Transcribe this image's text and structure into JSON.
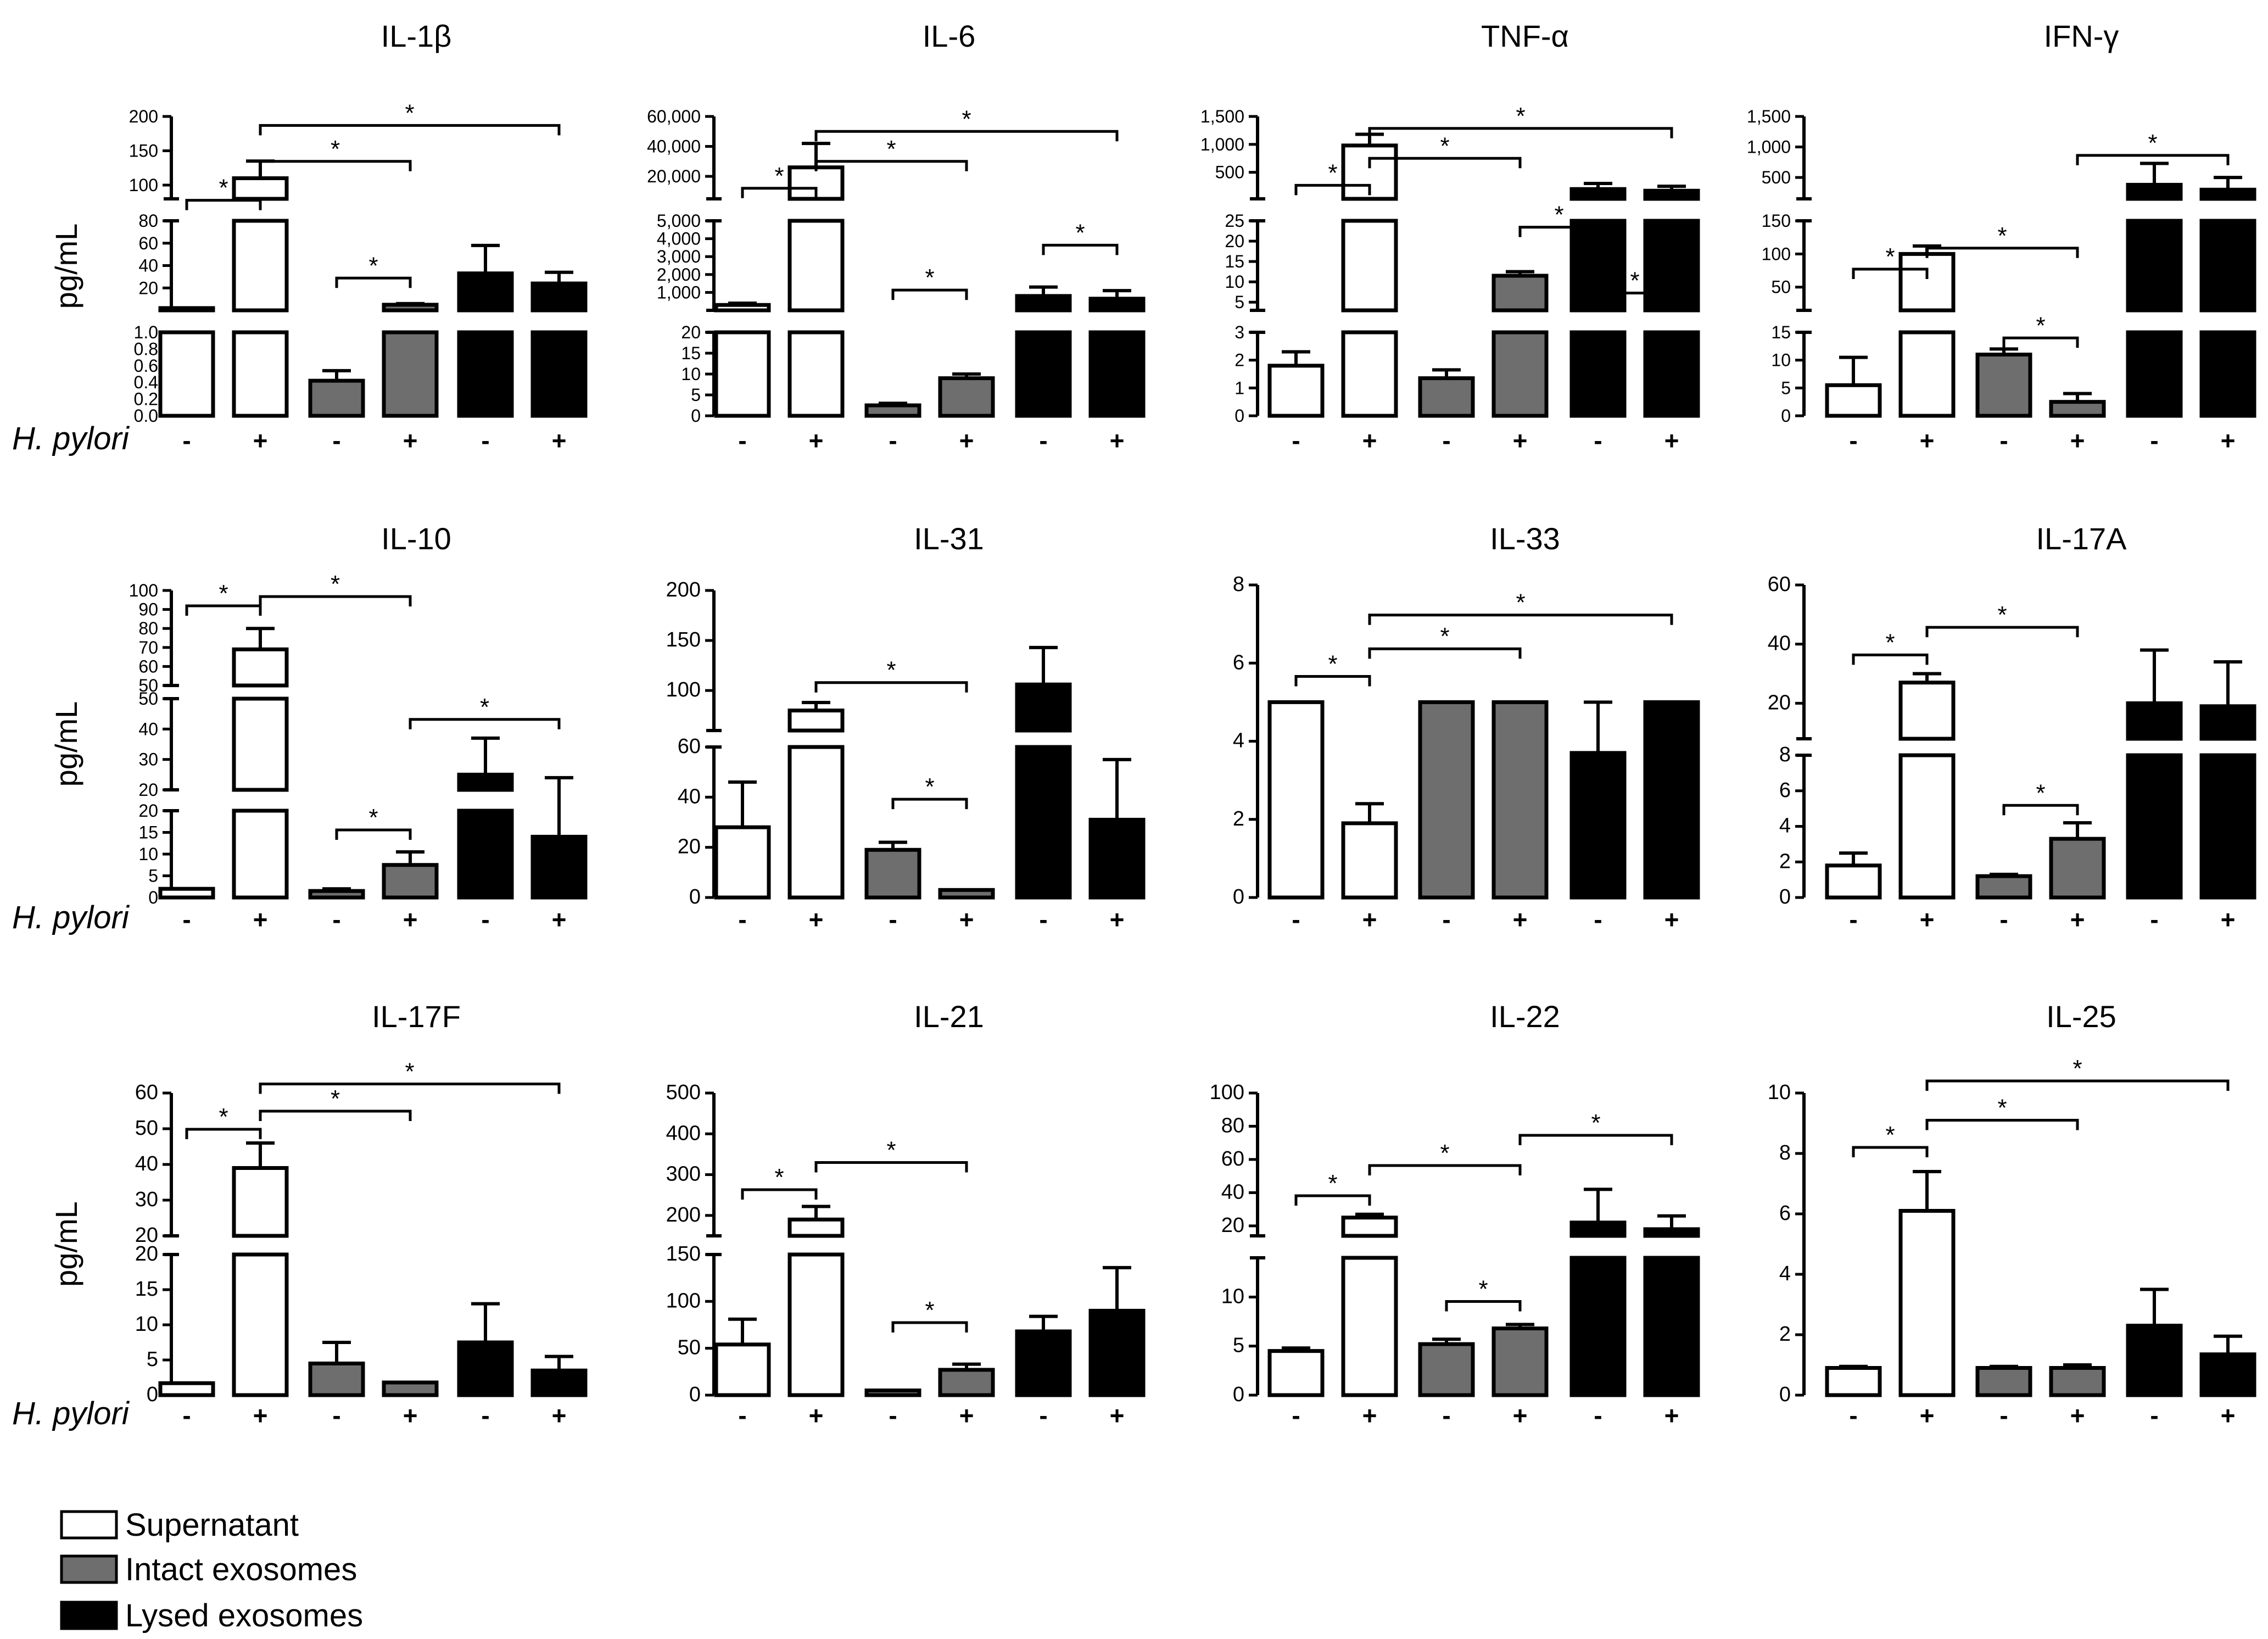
{
  "figure": {
    "ylabel": "pg/mL",
    "row_label": "H. pylori",
    "treatment_signs": [
      "-",
      "+",
      "-",
      "+",
      "-",
      "+"
    ],
    "group_colors": [
      "#ffffff",
      "#6e6e6e",
      "#000000"
    ],
    "significance_marker": "*"
  },
  "legend": [
    {
      "label": "Supernatant",
      "color": "#ffffff"
    },
    {
      "label": "Intact exosomes",
      "color": "#6e6e6e"
    },
    {
      "label": "Lysed exosomes",
      "color": "#000000"
    }
  ],
  "chart_data": [
    {
      "type": "bar",
      "title": "IL-1β",
      "ylabel": "pg/mL",
      "categories": [
        "-",
        "+",
        "-",
        "+",
        "-",
        "+"
      ],
      "values": [
        2,
        110,
        0.42,
        5,
        33,
        24
      ],
      "errors": [
        0,
        25,
        0.12,
        1,
        25,
        10
      ],
      "segments": [
        {
          "range": [
            0,
            1
          ],
          "ticks": [
            0,
            0.2,
            0.4,
            0.6,
            0.8,
            1
          ],
          "tick_labels": [
            "0.0",
            "0.2",
            "0.4",
            "0.6",
            "0.8",
            "1.0"
          ]
        },
        {
          "range": [
            0,
            80
          ],
          "ticks": [
            20,
            40,
            60,
            80
          ],
          "tick_labels": [
            "20",
            "40",
            "60",
            "80"
          ]
        },
        {
          "range": [
            80,
            200
          ],
          "ticks": [
            100,
            150,
            200
          ],
          "tick_labels": [
            "100",
            "150",
            "200"
          ]
        }
      ],
      "brackets": [
        [
          0,
          1,
          0.28
        ],
        [
          1,
          3,
          0.15
        ],
        [
          1,
          5,
          0.03
        ],
        [
          2,
          3,
          0.54
        ]
      ]
    },
    {
      "type": "bar",
      "title": "IL-6",
      "ylabel": "",
      "categories": [
        "-",
        "+",
        "-",
        "+",
        "-",
        "+"
      ],
      "values": [
        300,
        26000,
        2.5,
        9,
        800,
        650
      ],
      "errors": [
        100,
        16000,
        0.5,
        1,
        500,
        450
      ],
      "segments": [
        {
          "range": [
            0,
            20
          ],
          "ticks": [
            0,
            5,
            10,
            15,
            20
          ],
          "tick_labels": [
            "0",
            "5",
            "10",
            "15",
            "20"
          ]
        },
        {
          "range": [
            0,
            5000
          ],
          "ticks": [
            1000,
            2000,
            3000,
            4000,
            5000
          ],
          "tick_labels": [
            "1,000",
            "2,000",
            "3,000",
            "4,000",
            "5,000"
          ]
        },
        {
          "range": [
            5000,
            60000
          ],
          "ticks": [
            20000,
            40000,
            60000
          ],
          "tick_labels": [
            "20,000",
            "40,000",
            "60,000"
          ]
        }
      ],
      "brackets": [
        [
          0,
          1,
          0.24
        ],
        [
          1,
          3,
          0.15
        ],
        [
          1,
          5,
          0.05
        ],
        [
          2,
          3,
          0.58
        ],
        [
          4,
          5,
          0.43
        ]
      ]
    },
    {
      "type": "bar",
      "title": "TNF-α",
      "ylabel": "",
      "categories": [
        "-",
        "+",
        "-",
        "+",
        "-",
        "+"
      ],
      "values": [
        1.8,
        980,
        1.35,
        11.5,
        200,
        170
      ],
      "errors": [
        0.5,
        200,
        0.3,
        1,
        100,
        80
      ],
      "segments": [
        {
          "range": [
            0,
            3
          ],
          "ticks": [
            0,
            1,
            2,
            3
          ],
          "tick_labels": [
            "0",
            "1",
            "2",
            "3"
          ]
        },
        {
          "range": [
            3,
            25
          ],
          "ticks": [
            5,
            10,
            15,
            20,
            25
          ],
          "tick_labels": [
            "5",
            "10",
            "15",
            "20",
            "25"
          ]
        },
        {
          "range": [
            25,
            1500
          ],
          "ticks": [
            500,
            1000,
            1500
          ],
          "tick_labels": [
            "500",
            "1,000",
            "1,500"
          ]
        }
      ],
      "brackets": [
        [
          0,
          1,
          0.23
        ],
        [
          1,
          3,
          0.14
        ],
        [
          1,
          5,
          0.04
        ],
        [
          3,
          4,
          0.37
        ],
        [
          4,
          5,
          0.59
        ]
      ]
    },
    {
      "type": "bar",
      "title": "IFN-γ",
      "ylabel": "",
      "categories": [
        "-",
        "+",
        "-",
        "+",
        "-",
        "+"
      ],
      "values": [
        5.5,
        100,
        11,
        2.5,
        380,
        300
      ],
      "errors": [
        5,
        12,
        1,
        1.5,
        350,
        200
      ],
      "segments": [
        {
          "range": [
            0,
            15
          ],
          "ticks": [
            0,
            5,
            10,
            15
          ],
          "tick_labels": [
            "0",
            "5",
            "10",
            "15"
          ]
        },
        {
          "range": [
            15,
            150
          ],
          "ticks": [
            50,
            100,
            150
          ],
          "tick_labels": [
            "50",
            "100",
            "150"
          ]
        },
        {
          "range": [
            150,
            1500
          ],
          "ticks": [
            500,
            1000,
            1500
          ],
          "tick_labels": [
            "500",
            "1,000",
            "1,500"
          ]
        }
      ],
      "brackets": [
        [
          0,
          1,
          0.51
        ],
        [
          1,
          3,
          0.44
        ],
        [
          2,
          3,
          0.74
        ],
        [
          3,
          5,
          0.13
        ]
      ]
    },
    {
      "type": "bar",
      "title": "IL-10",
      "ylabel": "pg/mL",
      "categories": [
        "-",
        "+",
        "-",
        "+",
        "-",
        "+"
      ],
      "values": [
        2,
        69,
        1.5,
        7.5,
        25,
        14
      ],
      "errors": [
        0,
        11,
        0.5,
        3,
        12,
        10
      ],
      "segments": [
        {
          "range": [
            0,
            20
          ],
          "ticks": [
            0,
            5,
            10,
            15,
            20
          ],
          "tick_labels": [
            "0",
            "5",
            "10",
            "15",
            "20"
          ]
        },
        {
          "range": [
            20,
            50
          ],
          "ticks": [
            20,
            30,
            40,
            50
          ],
          "tick_labels": [
            "20",
            "30",
            "40",
            "50"
          ]
        },
        {
          "range": [
            50,
            100
          ],
          "ticks": [
            50,
            60,
            70,
            80,
            90,
            100
          ],
          "tick_labels": [
            "50",
            "60",
            "70",
            "80",
            "90",
            "100"
          ]
        }
      ],
      "brackets": [
        [
          0,
          1,
          0.05
        ],
        [
          1,
          3,
          0.02
        ],
        [
          2,
          3,
          0.78
        ],
        [
          3,
          5,
          0.42
        ]
      ]
    },
    {
      "type": "bar",
      "title": "IL-31",
      "ylabel": "",
      "categories": [
        "-",
        "+",
        "-",
        "+",
        "-",
        "+"
      ],
      "values": [
        28,
        80,
        19,
        3,
        106,
        31
      ],
      "errors": [
        18,
        8,
        3,
        0,
        37,
        24
      ],
      "segments": [
        {
          "range": [
            0,
            60
          ],
          "ticks": [
            0,
            20,
            40,
            60
          ],
          "tick_labels": [
            "0",
            "20",
            "40",
            "60"
          ]
        },
        {
          "range": [
            60,
            200
          ],
          "ticks": [
            100,
            150,
            200
          ],
          "tick_labels": [
            "100",
            "150",
            "200"
          ]
        }
      ],
      "brackets": [
        [
          1,
          3,
          0.3
        ],
        [
          2,
          3,
          0.68
        ]
      ]
    },
    {
      "type": "bar",
      "title": "IL-33",
      "ylabel": "",
      "categories": [
        "-",
        "+",
        "-",
        "+",
        "-",
        "+"
      ],
      "values": [
        5,
        1.9,
        5,
        5,
        3.7,
        5
      ],
      "errors": [
        0,
        0.5,
        0,
        0,
        1.3,
        0
      ],
      "segments": [
        {
          "range": [
            0,
            8
          ],
          "ticks": [
            0,
            2,
            4,
            6,
            8
          ],
          "tick_labels": [
            "0",
            "2",
            "4",
            "6",
            "8"
          ]
        }
      ],
      "brackets": [
        [
          0,
          1,
          0.28
        ],
        [
          1,
          3,
          0.19
        ],
        [
          1,
          5,
          0.08
        ]
      ]
    },
    {
      "type": "bar",
      "title": "IL-17A",
      "ylabel": "",
      "categories": [
        "-",
        "+",
        "-",
        "+",
        "-",
        "+"
      ],
      "values": [
        1.8,
        27,
        1.2,
        3.3,
        20,
        19
      ],
      "errors": [
        0.7,
        3,
        0.1,
        0.9,
        18,
        15
      ],
      "segments": [
        {
          "range": [
            0,
            8
          ],
          "ticks": [
            0,
            2,
            4,
            6,
            8
          ],
          "tick_labels": [
            "0",
            "2",
            "4",
            "6",
            "8"
          ]
        },
        {
          "range": [
            8,
            60
          ],
          "ticks": [
            20,
            40,
            60
          ],
          "tick_labels": [
            "20",
            "40",
            "60"
          ]
        }
      ],
      "brackets": [
        [
          0,
          1,
          0.21
        ],
        [
          1,
          3,
          0.12
        ],
        [
          2,
          3,
          0.7
        ]
      ]
    },
    {
      "type": "bar",
      "title": "IL-17F",
      "ylabel": "pg/mL",
      "categories": [
        "-",
        "+",
        "-",
        "+",
        "-",
        "+"
      ],
      "values": [
        1.7,
        39,
        4.5,
        1.8,
        7.5,
        3.5
      ],
      "errors": [
        0,
        7,
        3,
        0,
        5.5,
        2
      ],
      "segments": [
        {
          "range": [
            0,
            20
          ],
          "ticks": [
            0,
            5,
            10,
            15,
            20
          ],
          "tick_labels": [
            "0",
            "5",
            "10",
            "15",
            "20"
          ]
        },
        {
          "range": [
            20,
            60
          ],
          "ticks": [
            20,
            30,
            40,
            50,
            60
          ],
          "tick_labels": [
            "20",
            "30",
            "40",
            "50",
            "60"
          ]
        }
      ],
      "brackets": [
        [
          0,
          1,
          0.12
        ],
        [
          1,
          3,
          0.06
        ],
        [
          1,
          5,
          -0.03
        ]
      ]
    },
    {
      "type": "bar",
      "title": "IL-21",
      "ylabel": "",
      "categories": [
        "-",
        "+",
        "-",
        "+",
        "-",
        "+"
      ],
      "values": [
        54,
        190,
        5,
        27,
        68,
        90
      ],
      "errors": [
        27,
        32,
        0,
        6,
        16,
        46
      ],
      "segments": [
        {
          "range": [
            0,
            150
          ],
          "ticks": [
            0,
            50,
            100,
            150
          ],
          "tick_labels": [
            "0",
            "50",
            "100",
            "150"
          ]
        },
        {
          "range": [
            150,
            500
          ],
          "ticks": [
            200,
            300,
            400,
            500
          ],
          "tick_labels": [
            "200",
            "300",
            "400",
            "500"
          ]
        }
      ],
      "brackets": [
        [
          0,
          1,
          0.32
        ],
        [
          1,
          3,
          0.23
        ],
        [
          2,
          3,
          0.76
        ]
      ]
    },
    {
      "type": "bar",
      "title": "IL-22",
      "ylabel": "",
      "categories": [
        "-",
        "+",
        "-",
        "+",
        "-",
        "+"
      ],
      "values": [
        4.5,
        25,
        5.2,
        6.8,
        22,
        18
      ],
      "errors": [
        0.3,
        2,
        0.5,
        0.4,
        20,
        8
      ],
      "segments": [
        {
          "range": [
            0,
            14
          ],
          "ticks": [
            0,
            5,
            10
          ],
          "tick_labels": [
            "0",
            "5",
            "10"
          ]
        },
        {
          "range": [
            14,
            100
          ],
          "ticks": [
            20,
            40,
            60,
            80,
            100
          ],
          "tick_labels": [
            "20",
            "40",
            "60",
            "80",
            "100"
          ]
        }
      ],
      "brackets": [
        [
          0,
          1,
          0.34
        ],
        [
          1,
          3,
          0.24
        ],
        [
          2,
          3,
          0.69
        ],
        [
          3,
          5,
          0.14
        ]
      ]
    },
    {
      "type": "bar",
      "title": "IL-25",
      "ylabel": "",
      "categories": [
        "-",
        "+",
        "-",
        "+",
        "-",
        "+"
      ],
      "values": [
        0.9,
        6.1,
        0.9,
        0.9,
        2.3,
        1.35
      ],
      "errors": [
        0.05,
        1.3,
        0.05,
        0.1,
        1.2,
        0.6
      ],
      "segments": [
        {
          "range": [
            0,
            10
          ],
          "ticks": [
            0,
            2,
            4,
            6,
            8,
            10
          ],
          "tick_labels": [
            "0",
            "2",
            "4",
            "6",
            "8",
            "10"
          ]
        }
      ],
      "brackets": [
        [
          0,
          1,
          0.18
        ],
        [
          1,
          3,
          0.09
        ],
        [
          1,
          5,
          -0.04
        ]
      ]
    }
  ]
}
